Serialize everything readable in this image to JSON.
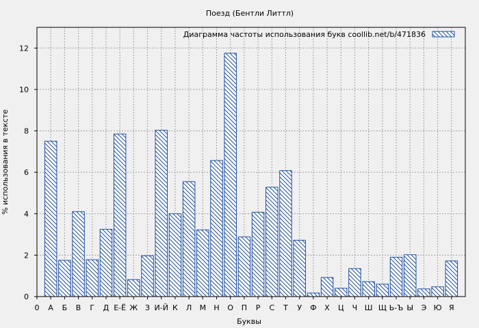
{
  "chart_data": {
    "type": "bar",
    "title": "Поезд (Бентли Литтл)",
    "xlabel": "Буквы",
    "ylabel": "% использования в тексте",
    "ylim": [
      0,
      13
    ],
    "yticks": [
      0,
      2,
      4,
      6,
      8,
      10,
      12
    ],
    "grid": true,
    "legend_position": "top-right",
    "categories": [
      "0",
      "А",
      "Б",
      "В",
      "Г",
      "Д",
      "Е-Ё",
      "Ж",
      "З",
      "И-Й",
      "К",
      "Л",
      "М",
      "Н",
      "О",
      "П",
      "Р",
      "С",
      "Т",
      "У",
      "Ф",
      "Х",
      "Ц",
      "Ч",
      "Ш",
      "Щ",
      "Ь-Ъ",
      "Ы",
      "Э",
      "Ю",
      "Я"
    ],
    "series": [
      {
        "name": "Диаграмма частоты использования букв  coollib.net/b/471836",
        "values": [
          null,
          7.5,
          1.75,
          4.1,
          1.78,
          3.25,
          7.85,
          0.82,
          1.97,
          8.03,
          4.0,
          5.55,
          3.22,
          6.57,
          11.75,
          2.88,
          4.07,
          5.28,
          6.08,
          2.72,
          0.17,
          0.92,
          0.4,
          1.35,
          0.72,
          0.6,
          1.9,
          2.02,
          0.37,
          0.47,
          1.72
        ]
      }
    ],
    "colors": {
      "bar_stroke": "#1f4fa0",
      "grid": "#a0a0a0",
      "background": "#f0f0f0"
    }
  }
}
